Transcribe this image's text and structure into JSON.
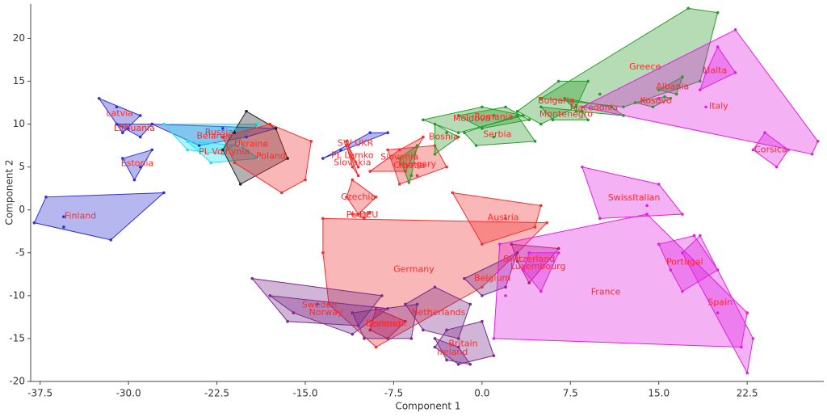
{
  "chart_data": {
    "type": "scatter",
    "x_label": "Component 1",
    "y_label": "Component 2",
    "xlim": [
      -38.3,
      29
    ],
    "ylim": [
      -20,
      24
    ],
    "xticks": [
      -37.5,
      {
        "value": -30,
        "label": "-30.0"
      },
      -22.5,
      {
        "value": -15,
        "label": "-15.0"
      },
      -7.5,
      {
        "value": 0,
        "label": "0.0"
      },
      7.5,
      {
        "value": 15,
        "label": "15.0"
      },
      22.5
    ],
    "yticks": [
      -20,
      -15,
      -10,
      -5,
      0,
      5,
      10,
      15,
      20
    ],
    "label_color": "#ff2a2a",
    "series": [
      {
        "name": "Finland",
        "color": "#3030d0",
        "x": [
          -38,
          -37,
          -27,
          -31.5,
          -35.5,
          -35.5
        ],
        "y": [
          -1.5,
          1.5,
          2,
          -3.5,
          -0.8,
          -2
        ]
      },
      {
        "name": "Latvia",
        "color": "#3030d0",
        "x": [
          -32.5,
          -29,
          -30.5,
          -31
        ],
        "y": [
          13,
          11,
          9,
          12
        ]
      },
      {
        "name": "Lithuania",
        "color": "#3030d0",
        "x": [
          -31,
          -29,
          -28,
          -30
        ],
        "y": [
          10,
          8.5,
          10,
          9.5
        ]
      },
      {
        "name": "Estonia",
        "color": "#3030d0",
        "x": [
          -30.5,
          -29.5,
          -28,
          -29
        ],
        "y": [
          6,
          3.5,
          7,
          5
        ]
      },
      {
        "name": "Russia",
        "color": "#3030d0",
        "x": [
          -28,
          -22,
          -17.5,
          -24,
          -20
        ],
        "y": [
          10,
          9.5,
          9.5,
          7.5,
          8.5
        ]
      },
      {
        "name": "Belarus",
        "color": "#20e0f0",
        "x": [
          -27,
          -21,
          -19,
          -25,
          -22
        ],
        "y": [
          10,
          9.5,
          10,
          7,
          6.5
        ]
      },
      {
        "name": "PL Volhynia",
        "color": "#20e0f0",
        "x": [
          -25,
          -20.5,
          -23,
          -19
        ],
        "y": [
          8,
          7.5,
          5.5,
          6
        ]
      },
      {
        "name": "Ukraine",
        "color": "#222222",
        "x": [
          -20,
          -17.5,
          -16.5,
          -20.5,
          -22,
          -21
        ],
        "y": [
          11.5,
          9.5,
          6,
          3,
          7,
          9
        ]
      },
      {
        "name": "Poland",
        "color": "#f03030",
        "x": [
          -22,
          -18,
          -14.5,
          -15,
          -17,
          -21
        ],
        "y": [
          8.5,
          10,
          8,
          3.5,
          2,
          5.5
        ]
      },
      {
        "name": "SW UKR",
        "color": "#3030d0",
        "x": [
          -13.5,
          -9.5,
          -8,
          -12
        ],
        "y": [
          6,
          9,
          9,
          7
        ]
      },
      {
        "name": "PL Lemko",
        "color": "#f03030",
        "x": [
          -11.5,
          -11,
          -10.5
        ],
        "y": [
          8,
          6,
          5
        ]
      },
      {
        "name": "Slovakia",
        "color": "#f03030",
        "x": [
          -11.5,
          -10.5,
          -11
        ],
        "y": [
          7.5,
          4,
          5
        ]
      },
      {
        "name": "Czechia",
        "color": "#f03030",
        "x": [
          -11,
          -9,
          -10.5,
          -11.5
        ],
        "y": [
          3.5,
          1.5,
          -0.5,
          1.5
        ]
      },
      {
        "name": "Slovenia",
        "color": "#f03030",
        "x": [
          -9.5,
          -7,
          -5,
          -6.5
        ],
        "y": [
          4.5,
          7,
          8.5,
          4.5
        ]
      },
      {
        "name": "Hungary",
        "color": "#f03030",
        "x": [
          -8,
          -4,
          -3,
          -7,
          -5.5
        ],
        "y": [
          7,
          7.5,
          5,
          3,
          4
        ]
      },
      {
        "name": "Croatia",
        "color": "#2a9a2a",
        "x": [
          -5.5,
          -6,
          -7,
          -6.2
        ],
        "y": [
          7.5,
          4,
          6,
          3.2
        ]
      },
      {
        "name": "Bosnia",
        "color": "#2a9a2a",
        "x": [
          -4,
          -2,
          -4,
          -3
        ],
        "y": [
          10,
          8.5,
          6.5,
          9
        ]
      },
      {
        "name": "Moldova",
        "color": "#2a9a2a",
        "x": [
          -5,
          0,
          3.5,
          -2
        ],
        "y": [
          10.5,
          12,
          11,
          9
        ]
      },
      {
        "name": "Romania",
        "color": "#2a9a2a",
        "x": [
          -2,
          2,
          4,
          0,
          1
        ],
        "y": [
          11,
          12,
          10.5,
          9.5,
          11
        ]
      },
      {
        "name": "Serbia",
        "color": "#2a9a2a",
        "x": [
          -1.5,
          3,
          4.5,
          -0.5,
          1
        ],
        "y": [
          9,
          11,
          8,
          7.5,
          8.5
        ]
      },
      {
        "name": "Bulgaria",
        "color": "#2a9a2a",
        "x": [
          3,
          6.5,
          9,
          8,
          5
        ],
        "y": [
          11.5,
          15,
          15,
          12,
          10
        ]
      },
      {
        "name": "Montenegro",
        "color": "#2a9a2a",
        "x": [
          5,
          8.5,
          9,
          6
        ],
        "y": [
          12,
          11.5,
          10.5,
          10.5
        ]
      },
      {
        "name": "Macedonia",
        "color": "#2a9a2a",
        "x": [
          7,
          11,
          12,
          8
        ],
        "y": [
          13,
          12,
          11,
          11.5
        ]
      },
      {
        "name": "Kosovo",
        "color": "#2a9a2a",
        "x": [
          13,
          14.5,
          15.5,
          16
        ],
        "y": [
          12.5,
          12,
          13.2,
          13
        ]
      },
      {
        "name": "Albania",
        "color": "#2a9a2a",
        "x": [
          15,
          17,
          16.5
        ],
        "y": [
          14,
          15.5,
          13.5
        ]
      },
      {
        "name": "Greece",
        "color": "#2a9a2a",
        "x": [
          5,
          17.5,
          20,
          18.5,
          12,
          10
        ],
        "y": [
          13,
          23.5,
          23,
          15,
          12,
          13.5
        ]
      },
      {
        "name": "Malta",
        "color": "#e020e0",
        "x": [
          18.5,
          20,
          21.5,
          19
        ],
        "y": [
          14,
          19,
          16,
          16
        ]
      },
      {
        "name": "Italy",
        "color": "#e020e0",
        "x": [
          8.5,
          21.5,
          28.5,
          28,
          19,
          15
        ],
        "y": [
          12,
          21,
          8,
          6.5,
          12,
          13
        ]
      },
      {
        "name": "Corsica",
        "color": "#e020e0",
        "x": [
          24,
          26,
          25,
          23
        ],
        "y": [
          9,
          7,
          5,
          7
        ]
      },
      {
        "name": "SwissItalian",
        "color": "#e020e0",
        "x": [
          8.5,
          14,
          17,
          10,
          15
        ],
        "y": [
          5,
          0.5,
          -0.5,
          -1,
          3
        ]
      },
      {
        "name": "Austria",
        "color": "#f03030",
        "x": [
          -2.5,
          5,
          4.5,
          0,
          2
        ],
        "y": [
          2,
          0.5,
          -2,
          -4,
          -1
        ]
      },
      {
        "name": "PL DEU",
        "color": "#f03030",
        "x": [
          -11,
          -10,
          -9.5
        ],
        "y": [
          -0.5,
          -1,
          -0.3
        ]
      },
      {
        "name": "Germany",
        "color": "#f03030",
        "x": [
          -13.5,
          5.5,
          3,
          0,
          -9,
          -13,
          -13.5
        ],
        "y": [
          -1,
          -1.5,
          -5,
          -9,
          -16,
          -11,
          -5
        ]
      },
      {
        "name": "Switzerland",
        "color": "#b02060",
        "x": [
          2.5,
          6.5,
          4,
          3
        ],
        "y": [
          -4,
          -4.5,
          -8.5,
          -6
        ]
      },
      {
        "name": "Belgium",
        "color": "#7a2a8a",
        "x": [
          -1.5,
          3,
          2,
          0
        ],
        "y": [
          -8,
          -5,
          -9,
          -10
        ]
      },
      {
        "name": "Luxembourg",
        "color": "#e020e0",
        "x": [
          4,
          6.5,
          5,
          3.5
        ],
        "y": [
          -5,
          -5,
          -9.5,
          -7
        ]
      },
      {
        "name": "France",
        "color": "#e020e0",
        "x": [
          1.5,
          14,
          22.5,
          22,
          1,
          2
        ],
        "y": [
          -4,
          -0.5,
          -12,
          -16,
          -15,
          -10
        ]
      },
      {
        "name": "Portugal",
        "color": "#e020e0",
        "x": [
          15,
          18,
          20,
          17,
          16
        ],
        "y": [
          -4,
          -3,
          -7,
          -9.5,
          -7
        ]
      },
      {
        "name": "Spain",
        "color": "#e020e0",
        "x": [
          17,
          18.5,
          23,
          22.5,
          20
        ],
        "y": [
          -5,
          -3,
          -15,
          -19,
          -12
        ]
      },
      {
        "name": "Netherlands",
        "color": "#7a2a8a",
        "x": [
          -6.5,
          -4,
          -1,
          -2,
          -5
        ],
        "y": [
          -11,
          -9,
          -11,
          -15,
          -14
        ]
      },
      {
        "name": "Britain",
        "color": "#7a2a8a",
        "x": [
          -3,
          0,
          1,
          -2,
          -4
        ],
        "y": [
          -14,
          -13,
          -17,
          -18,
          -16
        ]
      },
      {
        "name": "Ireland",
        "color": "#7a2a8a",
        "x": [
          -4,
          -2,
          -1,
          -3
        ],
        "y": [
          -15,
          -16,
          -18,
          -17.5
        ]
      },
      {
        "name": "Sweden",
        "color": "#7a2a8a",
        "x": [
          -19.5,
          -8.5,
          -10.5,
          -16.5,
          -14
        ],
        "y": [
          -8,
          -10,
          -13.5,
          -13,
          -11
        ]
      },
      {
        "name": "Norway",
        "color": "#7a2a8a",
        "x": [
          -18,
          -8,
          -11,
          -16
        ],
        "y": [
          -10,
          -11.5,
          -14.5,
          -12
        ]
      },
      {
        "name": "Denmark",
        "color": "#7a2a8a",
        "x": [
          -11,
          -5.5,
          -6,
          -10
        ],
        "y": [
          -12,
          -11,
          -15,
          -15
        ]
      },
      {
        "name": "Iceland",
        "color": "#b02060",
        "x": [
          -9,
          -6.5,
          -8,
          -9.5
        ],
        "y": [
          -11.5,
          -13,
          -15,
          -14
        ]
      }
    ]
  }
}
